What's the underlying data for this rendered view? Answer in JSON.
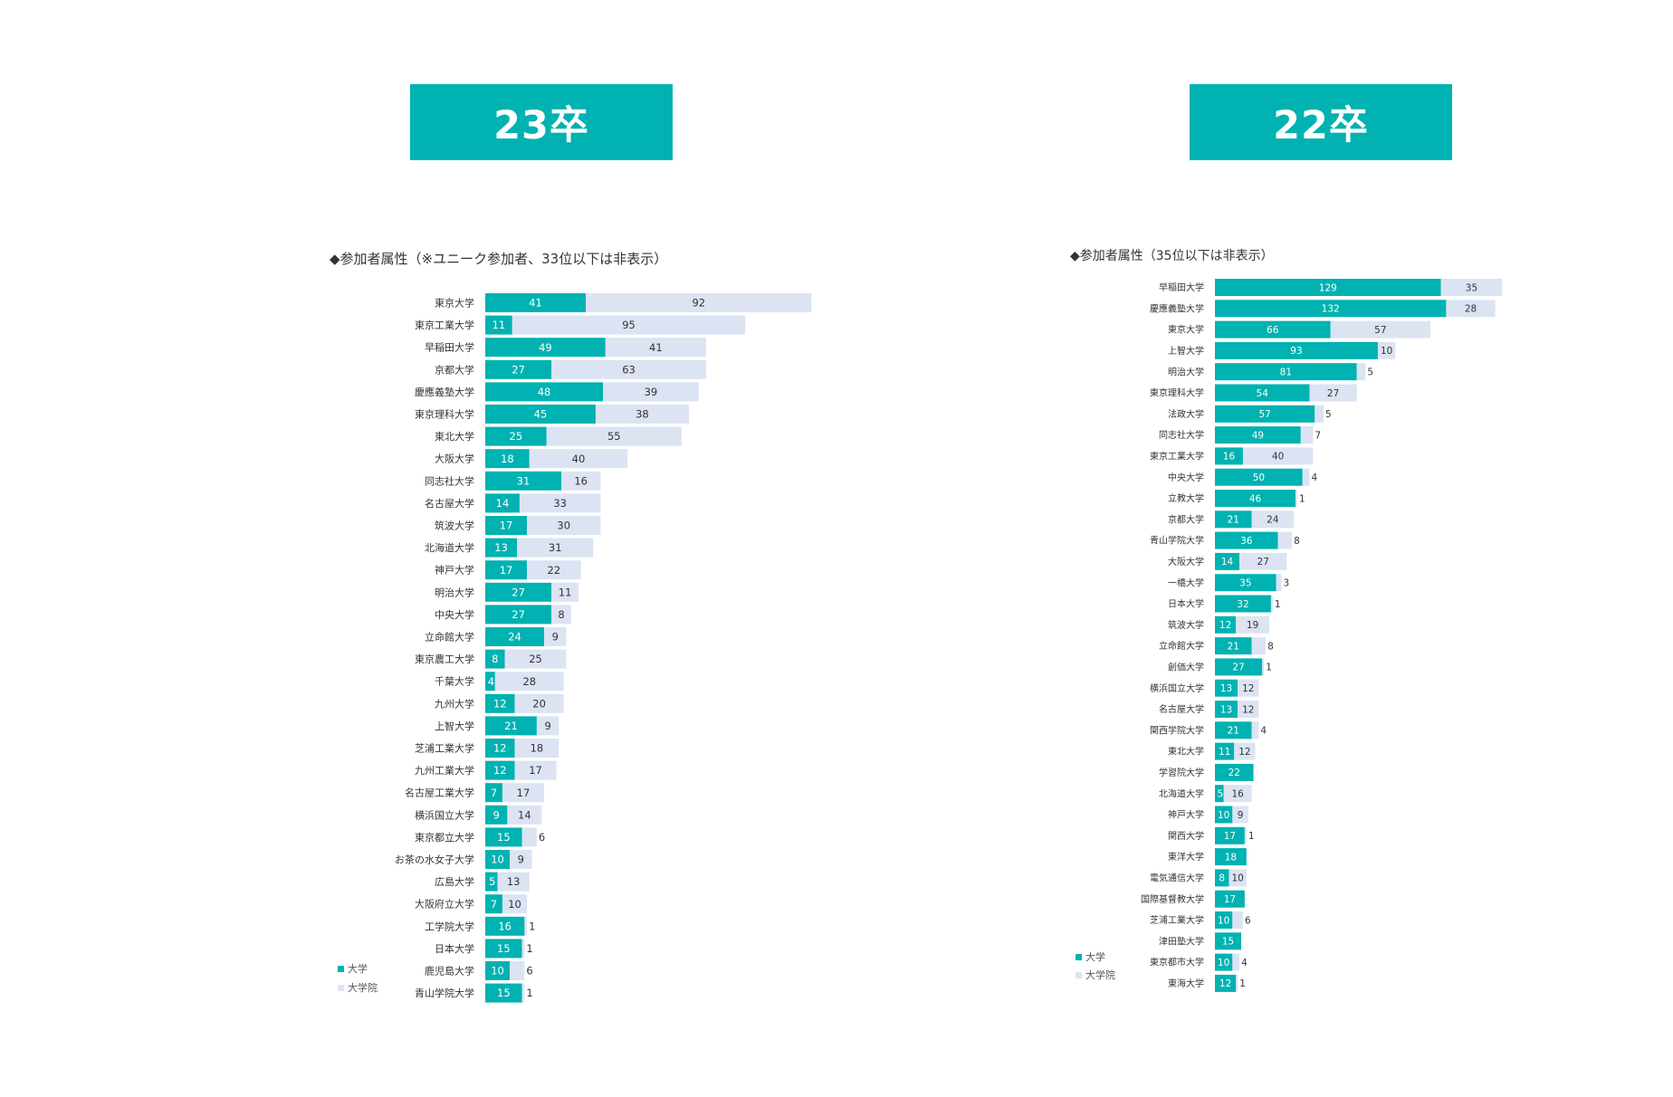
{
  "chart_data": [
    {
      "type": "bar",
      "orientation": "horizontal",
      "stacked": true,
      "title": "23卒",
      "subtitle": "◆参加者属性（※ユニーク参加者、33位以下は非表示）",
      "categories": [
        "東京大学",
        "東京工業大学",
        "早稲田大学",
        "京都大学",
        "慶應義塾大学",
        "東京理科大学",
        "東北大学",
        "大阪大学",
        "同志社大学",
        "名古屋大学",
        "筑波大学",
        "北海道大学",
        "神戸大学",
        "明治大学",
        "中央大学",
        "立命館大学",
        "東京農工大学",
        "千葉大学",
        "九州大学",
        "上智大学",
        "芝浦工業大学",
        "九州工業大学",
        "名古屋工業大学",
        "横浜国立大学",
        "東京都立大学",
        "お茶の水女子大学",
        "広島大学",
        "大阪府立大学",
        "工学院大学",
        "日本大学",
        "鹿児島大学",
        "青山学院大学"
      ],
      "series": [
        {
          "name": "大学",
          "color": "#00b2b1",
          "values": [
            41,
            11,
            49,
            27,
            48,
            45,
            25,
            18,
            31,
            14,
            17,
            13,
            17,
            27,
            27,
            24,
            8,
            4,
            12,
            21,
            12,
            12,
            7,
            9,
            15,
            10,
            5,
            7,
            16,
            15,
            10,
            15
          ]
        },
        {
          "name": "大学院",
          "color": "#dce3f3",
          "values": [
            92,
            95,
            41,
            63,
            39,
            38,
            55,
            40,
            16,
            33,
            30,
            31,
            22,
            11,
            8,
            9,
            25,
            28,
            20,
            9,
            18,
            17,
            17,
            14,
            6,
            9,
            13,
            10,
            1,
            1,
            6,
            1
          ]
        }
      ],
      "legend_position": "bottom-left"
    },
    {
      "type": "bar",
      "orientation": "horizontal",
      "stacked": true,
      "title": "22卒",
      "subtitle": "◆参加者属性（35位以下は非表示）",
      "categories": [
        "早稲田大学",
        "慶應義塾大学",
        "東京大学",
        "上智大学",
        "明治大学",
        "東京理科大学",
        "法政大学",
        "同志社大学",
        "東京工業大学",
        "中央大学",
        "立教大学",
        "京都大学",
        "青山学院大学",
        "大阪大学",
        "一橋大学",
        "日本大学",
        "筑波大学",
        "立命館大学",
        "創価大学",
        "横浜国立大学",
        "名古屋大学",
        "関西学院大学",
        "東北大学",
        "学習院大学",
        "北海道大学",
        "神戸大学",
        "関西大学",
        "東洋大学",
        "電気通信大学",
        "国際基督教大学",
        "芝浦工業大学",
        "津田塾大学",
        "東京都市大学",
        "東海大学"
      ],
      "series": [
        {
          "name": "大学",
          "color": "#00b2b1",
          "values": [
            129,
            132,
            66,
            93,
            81,
            54,
            57,
            49,
            16,
            50,
            46,
            21,
            36,
            14,
            35,
            32,
            12,
            21,
            27,
            13,
            13,
            21,
            11,
            22,
            5,
            10,
            17,
            18,
            8,
            17,
            10,
            15,
            10,
            12
          ]
        },
        {
          "name": "大学院",
          "color": "#dce3f3",
          "values": [
            35,
            28,
            57,
            10,
            5,
            27,
            5,
            7,
            40,
            4,
            1,
            24,
            8,
            27,
            3,
            1,
            19,
            8,
            1,
            12,
            12,
            4,
            12,
            0,
            16,
            9,
            1,
            0,
            10,
            0,
            6,
            0,
            4,
            1
          ]
        }
      ],
      "legend_position": "bottom-left"
    }
  ]
}
